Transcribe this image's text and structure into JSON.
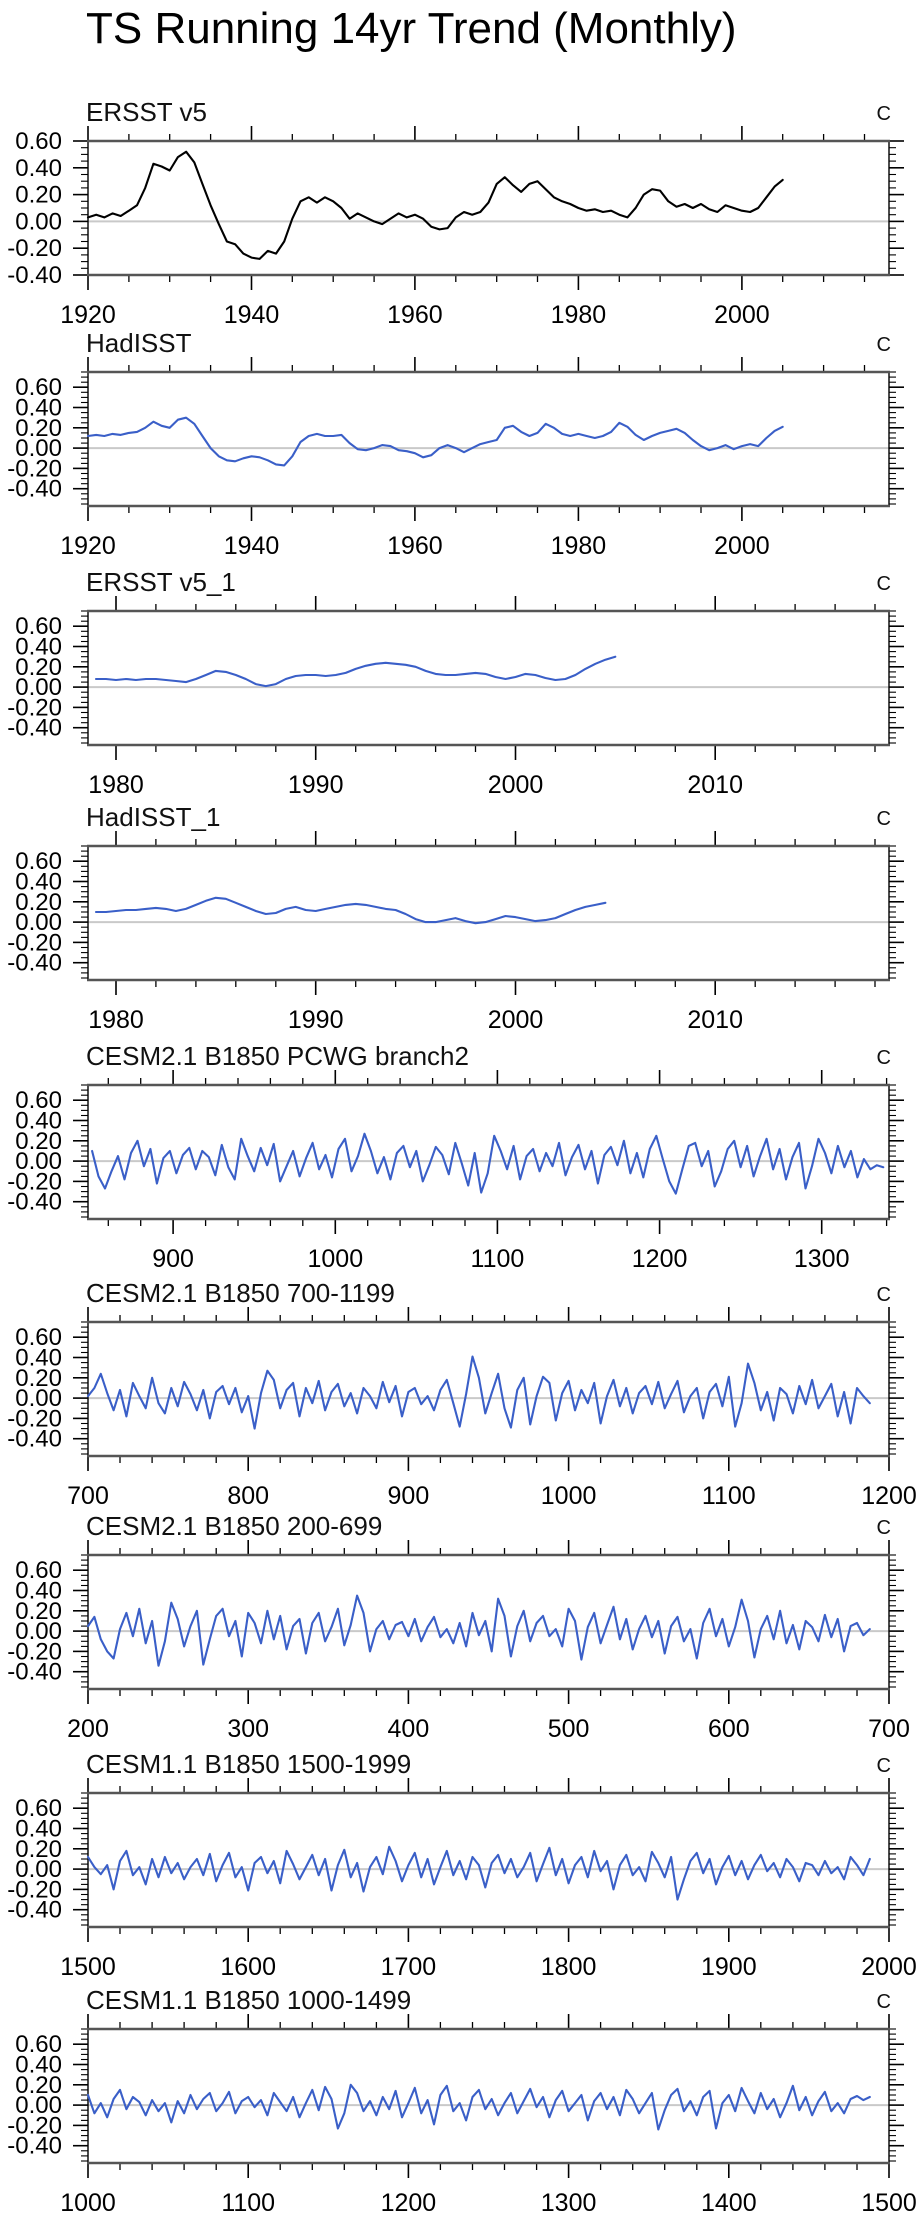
{
  "title": "TS Running 14yr Trend (Monthly)",
  "colors": {
    "observation_line": "#000000",
    "model_line": "#3a5fc8",
    "zero_line": "#c9c9c9",
    "frame_edge": "#555555",
    "tick": "#000000"
  },
  "chart_data": [
    {
      "type": "line",
      "title": "ERSST v5",
      "unit": "C",
      "color": "#000000",
      "xlim": [
        1920,
        2018
      ],
      "ylim": [
        -0.4,
        0.6
      ],
      "xticks": [
        1920,
        1940,
        1960,
        1980,
        2000
      ],
      "xminor": 5,
      "yticks": [
        0.6,
        0.4,
        0.2,
        0.0,
        -0.2,
        -0.4
      ],
      "yminor": 0.05,
      "ytick_labels": [
        "0.60",
        "0.40",
        "0.20",
        "0.00",
        "-0.20",
        "-0.40"
      ],
      "zero_line": true,
      "x0": 1920,
      "dx": 1,
      "values": [
        0.03,
        0.05,
        0.03,
        0.06,
        0.04,
        0.08,
        0.12,
        0.25,
        0.43,
        0.41,
        0.38,
        0.48,
        0.52,
        0.44,
        0.28,
        0.12,
        -0.02,
        -0.15,
        -0.17,
        -0.24,
        -0.27,
        -0.28,
        -0.22,
        -0.24,
        -0.15,
        0.02,
        0.15,
        0.18,
        0.14,
        0.18,
        0.15,
        0.1,
        0.02,
        0.06,
        0.03,
        0.0,
        -0.02,
        0.02,
        0.06,
        0.03,
        0.05,
        0.02,
        -0.04,
        -0.06,
        -0.05,
        0.03,
        0.07,
        0.05,
        0.07,
        0.14,
        0.28,
        0.33,
        0.27,
        0.22,
        0.28,
        0.3,
        0.24,
        0.18,
        0.15,
        0.13,
        0.1,
        0.08,
        0.09,
        0.07,
        0.08,
        0.05,
        0.03,
        0.1,
        0.2,
        0.24,
        0.23,
        0.15,
        0.11,
        0.13,
        0.1,
        0.13,
        0.09,
        0.07,
        0.12,
        0.1,
        0.08,
        0.07,
        0.1,
        0.18,
        0.26,
        0.31
      ]
    },
    {
      "type": "line",
      "title": "HadISST",
      "unit": "C",
      "color": "#3a5fc8",
      "xlim": [
        1920,
        2018
      ],
      "ylim": [
        -0.57,
        0.75
      ],
      "xticks": [
        1920,
        1940,
        1960,
        1980,
        2000
      ],
      "xminor": 5,
      "yticks": [
        0.6,
        0.4,
        0.2,
        0.0,
        -0.2,
        -0.4
      ],
      "yminor": 0.05,
      "ytick_labels": [
        "0.60",
        "0.40",
        "0.20",
        "0.00",
        "-0.20",
        "-0.40"
      ],
      "zero_line": true,
      "x0": 1920,
      "dx": 1,
      "values": [
        0.12,
        0.13,
        0.12,
        0.14,
        0.13,
        0.15,
        0.16,
        0.2,
        0.26,
        0.22,
        0.2,
        0.28,
        0.3,
        0.24,
        0.12,
        0.0,
        -0.08,
        -0.12,
        -0.13,
        -0.1,
        -0.08,
        -0.09,
        -0.12,
        -0.16,
        -0.17,
        -0.08,
        0.06,
        0.12,
        0.14,
        0.12,
        0.12,
        0.13,
        0.05,
        -0.01,
        -0.02,
        0.0,
        0.03,
        0.02,
        -0.02,
        -0.03,
        -0.05,
        -0.09,
        -0.07,
        0.0,
        0.03,
        0.0,
        -0.04,
        0.0,
        0.04,
        0.06,
        0.08,
        0.2,
        0.22,
        0.16,
        0.12,
        0.15,
        0.24,
        0.2,
        0.14,
        0.12,
        0.14,
        0.12,
        0.1,
        0.12,
        0.16,
        0.25,
        0.21,
        0.13,
        0.08,
        0.12,
        0.15,
        0.17,
        0.19,
        0.15,
        0.08,
        0.02,
        -0.02,
        0.0,
        0.03,
        -0.01,
        0.02,
        0.04,
        0.02,
        0.1,
        0.17,
        0.21
      ]
    },
    {
      "type": "line",
      "title": "ERSST v5_1",
      "unit": "C",
      "color": "#3a5fc8",
      "xlim": [
        1978.6,
        2018.7
      ],
      "ylim": [
        -0.57,
        0.75
      ],
      "xticks": [
        1980,
        1990,
        2000,
        2010
      ],
      "xminor": 2,
      "yticks": [
        0.6,
        0.4,
        0.2,
        0.0,
        -0.2,
        -0.4
      ],
      "yminor": 0.05,
      "ytick_labels": [
        "0.60",
        "0.40",
        "0.20",
        "0.00",
        "-0.20",
        "-0.40"
      ],
      "zero_line": true,
      "x0": 1979,
      "dx": 0.5,
      "values": [
        0.08,
        0.08,
        0.07,
        0.08,
        0.07,
        0.08,
        0.08,
        0.07,
        0.06,
        0.05,
        0.08,
        0.12,
        0.16,
        0.15,
        0.12,
        0.08,
        0.03,
        0.01,
        0.03,
        0.08,
        0.11,
        0.12,
        0.12,
        0.11,
        0.12,
        0.14,
        0.18,
        0.21,
        0.23,
        0.24,
        0.23,
        0.22,
        0.2,
        0.16,
        0.13,
        0.12,
        0.12,
        0.13,
        0.14,
        0.13,
        0.1,
        0.08,
        0.1,
        0.13,
        0.12,
        0.09,
        0.07,
        0.08,
        0.12,
        0.18,
        0.23,
        0.27,
        0.3
      ]
    },
    {
      "type": "line",
      "title": "HadISST_1",
      "unit": "C",
      "color": "#3a5fc8",
      "xlim": [
        1978.6,
        2018.7
      ],
      "ylim": [
        -0.57,
        0.75
      ],
      "xticks": [
        1980,
        1990,
        2000,
        2010
      ],
      "xminor": 2,
      "yticks": [
        0.6,
        0.4,
        0.2,
        0.0,
        -0.2,
        -0.4
      ],
      "yminor": 0.05,
      "ytick_labels": [
        "0.60",
        "0.40",
        "0.20",
        "0.00",
        "-0.20",
        "-0.40"
      ],
      "zero_line": true,
      "x0": 1979,
      "dx": 0.5,
      "values": [
        0.1,
        0.1,
        0.11,
        0.12,
        0.12,
        0.13,
        0.14,
        0.13,
        0.11,
        0.13,
        0.17,
        0.21,
        0.24,
        0.23,
        0.19,
        0.15,
        0.11,
        0.08,
        0.09,
        0.13,
        0.15,
        0.12,
        0.11,
        0.13,
        0.15,
        0.17,
        0.18,
        0.17,
        0.15,
        0.13,
        0.12,
        0.08,
        0.03,
        0.0,
        0.0,
        0.02,
        0.04,
        0.01,
        -0.01,
        0.0,
        0.03,
        0.06,
        0.05,
        0.03,
        0.01,
        0.02,
        0.04,
        0.08,
        0.12,
        0.15,
        0.17,
        0.19
      ]
    },
    {
      "type": "line",
      "title": "CESM2.1 B1850 PCWG branch2",
      "unit": "C",
      "color": "#3a5fc8",
      "xlim": [
        847.5,
        1341.5
      ],
      "ylim": [
        -0.57,
        0.75
      ],
      "xticks": [
        900,
        1000,
        1100,
        1200,
        1300
      ],
      "xminor": 20,
      "yticks": [
        0.6,
        0.4,
        0.2,
        0.0,
        -0.2,
        -0.4
      ],
      "yminor": 0.05,
      "ytick_labels": [
        "0.60",
        "0.40",
        "0.20",
        "0.00",
        "-0.20",
        "-0.40"
      ],
      "zero_line": true,
      "x0": 850,
      "dx": 4,
      "values": [
        0.1,
        -0.15,
        -0.27,
        -0.1,
        0.05,
        -0.18,
        0.08,
        0.2,
        -0.05,
        0.12,
        -0.22,
        0.03,
        0.1,
        -0.12,
        0.06,
        0.13,
        -0.08,
        0.1,
        0.04,
        -0.14,
        0.16,
        -0.06,
        -0.18,
        0.22,
        0.05,
        -0.1,
        0.13,
        -0.04,
        0.17,
        -0.2,
        -0.05,
        0.1,
        -0.15,
        0.03,
        0.18,
        -0.08,
        0.06,
        -0.16,
        0.12,
        0.22,
        -0.1,
        0.05,
        0.27,
        0.1,
        -0.12,
        0.04,
        -0.18,
        0.08,
        0.15,
        -0.06,
        0.1,
        -0.2,
        -0.04,
        0.14,
        0.06,
        -0.13,
        0.18,
        -0.02,
        -0.24,
        0.08,
        -0.31,
        -0.12,
        0.25,
        0.1,
        -0.08,
        0.15,
        -0.18,
        0.05,
        0.12,
        -0.1,
        0.08,
        -0.05,
        0.18,
        -0.14,
        0.04,
        0.16,
        -0.08,
        0.1,
        -0.22,
        0.06,
        0.14,
        -0.04,
        0.2,
        -0.12,
        0.08,
        -0.16,
        0.12,
        0.25,
        0.02,
        -0.2,
        -0.32,
        -0.08,
        0.15,
        0.18,
        -0.05,
        0.1,
        -0.25,
        -0.1,
        0.12,
        0.2,
        -0.06,
        0.15,
        -0.15,
        0.05,
        0.22,
        -0.08,
        0.12,
        -0.18,
        0.04,
        0.18,
        -0.27,
        -0.05,
        0.22,
        0.08,
        -0.12,
        0.15,
        -0.06,
        0.1,
        -0.16,
        0.02,
        -0.08,
        -0.04,
        -0.06
      ]
    },
    {
      "type": "line",
      "title": "CESM2.1 B1850 700-1199",
      "unit": "C",
      "color": "#3a5fc8",
      "xlim": [
        700,
        1200
      ],
      "ylim": [
        -0.57,
        0.75
      ],
      "xticks": [
        700,
        800,
        900,
        1000,
        1100,
        1200
      ],
      "xminor": 20,
      "yticks": [
        0.6,
        0.4,
        0.2,
        0.0,
        -0.2,
        -0.4
      ],
      "yminor": 0.05,
      "ytick_labels": [
        "0.60",
        "0.40",
        "0.20",
        "0.00",
        "-0.20",
        "-0.40"
      ],
      "zero_line": true,
      "x0": 700,
      "dx": 4,
      "values": [
        0.02,
        0.1,
        0.24,
        0.05,
        -0.12,
        0.08,
        -0.18,
        0.15,
        0.02,
        -0.1,
        0.2,
        -0.05,
        -0.15,
        0.1,
        -0.08,
        0.16,
        0.04,
        -0.12,
        0.08,
        -0.2,
        0.06,
        0.12,
        -0.06,
        0.1,
        -0.14,
        0.02,
        -0.3,
        0.05,
        0.27,
        0.18,
        -0.1,
        0.08,
        0.15,
        -0.18,
        0.1,
        -0.05,
        0.17,
        -0.12,
        0.06,
        0.14,
        -0.08,
        0.05,
        -0.15,
        0.1,
        0.02,
        -0.1,
        0.16,
        -0.04,
        0.12,
        -0.18,
        0.06,
        0.1,
        -0.06,
        0.02,
        -0.12,
        0.08,
        0.18,
        -0.05,
        -0.28,
        0.04,
        0.41,
        0.2,
        -0.15,
        0.05,
        0.24,
        -0.1,
        -0.29,
        0.08,
        0.2,
        -0.26,
        0.02,
        0.21,
        0.15,
        -0.22,
        0.05,
        0.17,
        -0.12,
        0.08,
        -0.05,
        0.15,
        -0.25,
        0.02,
        0.18,
        -0.08,
        0.1,
        -0.15,
        0.05,
        0.12,
        -0.06,
        0.16,
        -0.1,
        0.04,
        0.17,
        -0.14,
        0.02,
        0.1,
        -0.2,
        0.06,
        0.14,
        -0.08,
        0.21,
        -0.28,
        -0.05,
        0.34,
        0.15,
        -0.12,
        0.06,
        -0.22,
        0.1,
        0.04,
        -0.15,
        0.12,
        -0.06,
        0.18,
        -0.1,
        0.02,
        0.14,
        -0.18,
        0.06,
        -0.25,
        0.1,
        0.02,
        -0.05
      ]
    },
    {
      "type": "line",
      "title": "CESM2.1 B1850 200-699",
      "unit": "C",
      "color": "#3a5fc8",
      "xlim": [
        200,
        700
      ],
      "ylim": [
        -0.57,
        0.75
      ],
      "xticks": [
        200,
        300,
        400,
        500,
        600,
        700
      ],
      "xminor": 20,
      "yticks": [
        0.6,
        0.4,
        0.2,
        0.0,
        -0.2,
        -0.4
      ],
      "yminor": 0.05,
      "ytick_labels": [
        "0.60",
        "0.40",
        "0.20",
        "0.00",
        "-0.20",
        "-0.40"
      ],
      "zero_line": true,
      "x0": 200,
      "dx": 4,
      "values": [
        0.05,
        0.14,
        -0.08,
        -0.2,
        -0.27,
        0.02,
        0.18,
        -0.05,
        0.22,
        -0.12,
        0.1,
        -0.34,
        -0.1,
        0.28,
        0.12,
        -0.15,
        0.05,
        0.2,
        -0.33,
        -0.08,
        0.15,
        0.22,
        -0.05,
        0.1,
        -0.25,
        0.18,
        0.08,
        -0.12,
        0.2,
        -0.08,
        0.15,
        -0.18,
        0.05,
        0.12,
        -0.22,
        0.08,
        0.18,
        -0.1,
        0.04,
        0.22,
        -0.14,
        0.06,
        0.35,
        0.18,
        -0.2,
        0.02,
        0.1,
        -0.08,
        0.06,
        0.09,
        -0.05,
        0.12,
        -0.1,
        0.04,
        0.14,
        -0.06,
        0.02,
        -0.12,
        0.08,
        -0.15,
        0.18,
        -0.04,
        0.1,
        -0.2,
        0.32,
        0.15,
        -0.25,
        0.05,
        0.2,
        -0.1,
        0.08,
        0.15,
        -0.05,
        0.02,
        -0.15,
        0.22,
        0.1,
        -0.28,
        0.04,
        0.18,
        -0.12,
        0.06,
        0.24,
        -0.08,
        0.12,
        -0.18,
        0.02,
        0.15,
        -0.06,
        0.1,
        -0.22,
        0.05,
        0.14,
        -0.1,
        0.02,
        -0.27,
        0.08,
        0.22,
        -0.05,
        0.12,
        -0.15,
        0.04,
        0.31,
        0.1,
        -0.26,
        0.02,
        0.15,
        -0.08,
        0.2,
        -0.12,
        0.06,
        -0.18,
        0.1,
        0.04,
        -0.1,
        0.16,
        -0.06,
        0.12,
        -0.2,
        0.05,
        0.08,
        -0.04,
        0.02
      ]
    },
    {
      "type": "line",
      "title": "CESM1.1 B1850 1500-1999",
      "unit": "C",
      "color": "#3a5fc8",
      "xlim": [
        1500,
        2000
      ],
      "ylim": [
        -0.57,
        0.75
      ],
      "xticks": [
        1500,
        1600,
        1700,
        1800,
        1900,
        2000
      ],
      "xminor": 20,
      "yticks": [
        0.6,
        0.4,
        0.2,
        0.0,
        -0.2,
        -0.4
      ],
      "yminor": 0.05,
      "ytick_labels": [
        "0.60",
        "0.40",
        "0.20",
        "0.00",
        "-0.20",
        "-0.40"
      ],
      "zero_line": true,
      "x0": 1500,
      "dx": 4,
      "values": [
        0.12,
        0.02,
        -0.05,
        0.04,
        -0.2,
        0.08,
        0.18,
        -0.06,
        0.02,
        -0.15,
        0.1,
        -0.08,
        0.12,
        -0.04,
        0.06,
        -0.1,
        0.02,
        0.1,
        -0.06,
        0.15,
        -0.12,
        0.04,
        0.16,
        -0.08,
        0.02,
        -0.21,
        0.06,
        0.12,
        -0.04,
        0.08,
        -0.14,
        0.18,
        0.05,
        -0.1,
        0.02,
        0.14,
        -0.06,
        0.1,
        -0.21,
        0.04,
        0.19,
        -0.08,
        0.06,
        -0.22,
        0.02,
        0.12,
        -0.05,
        0.22,
        0.08,
        -0.12,
        0.04,
        0.16,
        -0.08,
        0.1,
        -0.15,
        0.02,
        0.18,
        -0.06,
        0.08,
        -0.1,
        0.12,
        0.04,
        -0.18,
        0.06,
        0.14,
        -0.04,
        0.1,
        -0.08,
        0.02,
        0.16,
        -0.12,
        0.05,
        0.21,
        -0.06,
        0.1,
        -0.14,
        0.04,
        0.12,
        -0.08,
        0.18,
        -0.02,
        0.08,
        -0.2,
        0.04,
        0.14,
        -0.06,
        0.02,
        -0.12,
        0.17,
        0.06,
        -0.08,
        0.12,
        -0.3,
        -0.1,
        0.08,
        0.16,
        -0.04,
        0.1,
        -0.15,
        0.02,
        0.13,
        -0.06,
        0.08,
        -0.1,
        0.04,
        0.14,
        -0.02,
        0.06,
        -0.08,
        0.1,
        0.02,
        -0.12,
        0.06,
        0.04,
        -0.06,
        0.08,
        -0.04,
        0.02,
        -0.1,
        0.12,
        0.04,
        -0.06,
        0.1
      ]
    },
    {
      "type": "line",
      "title": "CESM1.1 B1850 1000-1499",
      "unit": "C",
      "color": "#3a5fc8",
      "xlim": [
        1000,
        1500
      ],
      "ylim": [
        -0.57,
        0.75
      ],
      "xticks": [
        1000,
        1100,
        1200,
        1300,
        1400,
        1500
      ],
      "xminor": 20,
      "yticks": [
        0.6,
        0.4,
        0.2,
        0.0,
        -0.2,
        -0.4
      ],
      "yminor": 0.05,
      "ytick_labels": [
        "0.60",
        "0.40",
        "0.20",
        "0.00",
        "-0.20",
        "-0.40"
      ],
      "zero_line": true,
      "x0": 1000,
      "dx": 4,
      "values": [
        0.1,
        -0.08,
        0.02,
        -0.12,
        0.06,
        0.15,
        -0.04,
        0.08,
        0.03,
        -0.1,
        0.05,
        -0.06,
        0.02,
        -0.17,
        0.04,
        -0.08,
        0.1,
        -0.04,
        0.06,
        0.12,
        -0.06,
        0.02,
        0.13,
        -0.08,
        0.04,
        0.08,
        -0.02,
        0.05,
        -0.1,
        0.12,
        0.03,
        -0.06,
        0.08,
        -0.12,
        0.02,
        0.15,
        -0.05,
        0.18,
        0.06,
        -0.23,
        -0.08,
        0.2,
        0.12,
        -0.06,
        0.04,
        -0.1,
        0.08,
        -0.04,
        0.14,
        -0.12,
        0.02,
        0.17,
        -0.08,
        0.05,
        -0.19,
        0.1,
        0.19,
        -0.06,
        0.02,
        -0.15,
        0.08,
        0.15,
        -0.04,
        0.06,
        -0.1,
        0.02,
        0.12,
        -0.08,
        0.04,
        0.16,
        -0.02,
        0.08,
        -0.12,
        0.05,
        0.14,
        -0.06,
        0.02,
        0.1,
        -0.15,
        0.04,
        0.12,
        -0.04,
        0.08,
        -0.1,
        0.15,
        0.06,
        -0.08,
        0.02,
        0.12,
        -0.24,
        -0.05,
        0.1,
        0.16,
        -0.06,
        0.04,
        -0.1,
        0.08,
        0.14,
        -0.23,
        0.02,
        0.1,
        -0.06,
        0.17,
        0.04,
        -0.08,
        0.12,
        -0.04,
        0.06,
        -0.12,
        0.02,
        0.19,
        -0.05,
        0.08,
        -0.1,
        0.04,
        0.13,
        -0.06,
        0.02,
        -0.08,
        0.06,
        0.09,
        0.05,
        0.08
      ]
    }
  ]
}
